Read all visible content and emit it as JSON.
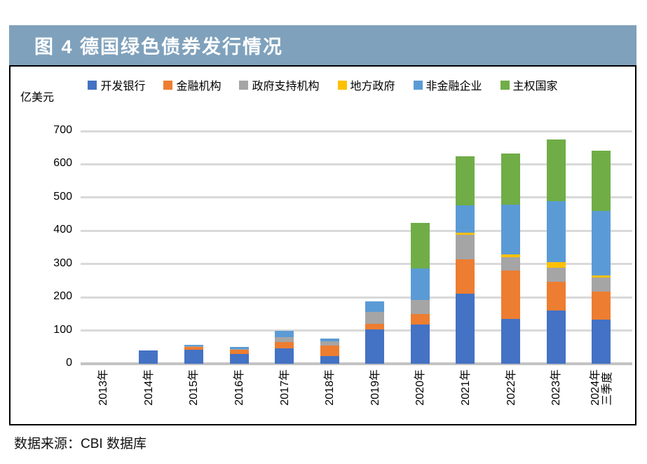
{
  "figure": {
    "title": "图 4  德国绿色债券发行情况",
    "source": "数据来源：CBI 数据库",
    "banner_color": "#7FA1BC"
  },
  "chart_data": {
    "type": "bar",
    "stacked": true,
    "title": "德国绿色债券发行情况",
    "unit_label": "亿美元",
    "categories": [
      "2013年",
      "2014年",
      "2015年",
      "2016年",
      "2017年",
      "2018年",
      "2019年",
      "2020年",
      "2021年",
      "2022年",
      "2023年",
      "2024年\n三季度"
    ],
    "series": [
      {
        "name": "开发银行",
        "color": "#4472C4",
        "values": [
          0,
          40,
          43,
          30,
          46,
          23,
          103,
          118,
          210,
          135,
          160,
          133
        ]
      },
      {
        "name": "金融机构",
        "color": "#ED7D31",
        "values": [
          0,
          0,
          7,
          13,
          20,
          31,
          18,
          32,
          105,
          145,
          86,
          85
        ]
      },
      {
        "name": "政府支持机构",
        "color": "#A5A5A5",
        "values": [
          0,
          0,
          3,
          2,
          15,
          14,
          35,
          42,
          72,
          40,
          42,
          41
        ]
      },
      {
        "name": "地方政府",
        "color": "#FFC000",
        "values": [
          0,
          0,
          0,
          0,
          0,
          0,
          0,
          0,
          8,
          8,
          18,
          7
        ]
      },
      {
        "name": "非金融企业",
        "color": "#5B9BD5",
        "values": [
          0,
          0,
          3,
          5,
          19,
          8,
          31,
          95,
          82,
          150,
          183,
          193
        ]
      },
      {
        "name": "主权国家",
        "color": "#70AD47",
        "values": [
          0,
          0,
          0,
          0,
          0,
          0,
          0,
          136,
          148,
          155,
          186,
          181
        ]
      }
    ],
    "totals": [
      0,
      40,
      56,
      50,
      100,
      76,
      187,
      423,
      625,
      633,
      675,
      640
    ],
    "ylim": [
      0,
      700
    ],
    "yticks": [
      0,
      100,
      200,
      300,
      400,
      500,
      600,
      700
    ],
    "grid": true,
    "legend_position": "top",
    "gridline_color": "#D9D9D9"
  }
}
